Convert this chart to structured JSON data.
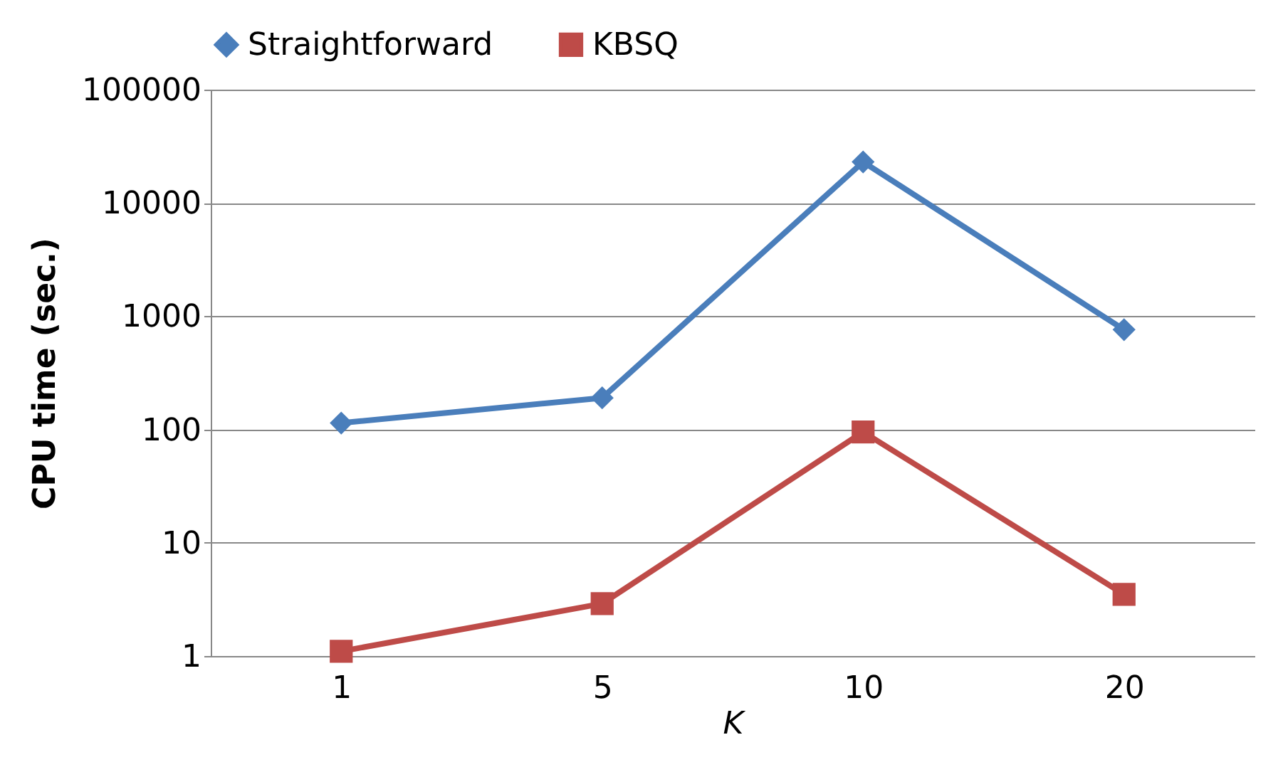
{
  "chart_data": {
    "type": "line",
    "xlabel": "K",
    "ylabel": "CPU time (sec.)",
    "categories": [
      "1",
      "5",
      "10",
      "20"
    ],
    "series": [
      {
        "name": "Straightforward",
        "color": "#4a7ebb",
        "marker": "diamond",
        "values": [
          114,
          190,
          23000,
          760
        ]
      },
      {
        "name": "KBSQ",
        "color": "#be4b48",
        "marker": "square",
        "values": [
          1.1,
          2.9,
          95,
          3.5
        ]
      }
    ],
    "log": "y",
    "ylim": [
      1,
      100000
    ],
    "yticks": [
      1,
      10,
      100,
      1000,
      10000,
      100000
    ],
    "grid": "y",
    "legend": "top"
  }
}
